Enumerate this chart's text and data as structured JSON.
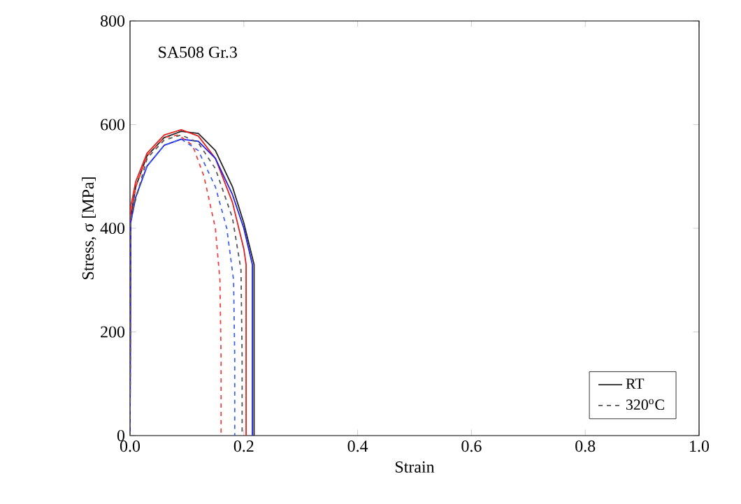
{
  "chart_data": {
    "type": "line",
    "xlabel": "Strain",
    "ylabel": "Stress, σ [MPa]",
    "annotations": [
      "SA508 Gr.3"
    ],
    "xlim": [
      0.0,
      1.0
    ],
    "xticks": [
      {
        "value": 0,
        "label": "0.0"
      },
      0.2,
      0.4,
      0.6,
      0.8,
      {
        "value": 1,
        "label": "1.0"
      }
    ],
    "ylim": [
      0,
      800
    ],
    "yticks": [
      0,
      200,
      400,
      600,
      800
    ],
    "legend": "bottom right",
    "grid": false,
    "marker": "none",
    "series": [
      {
        "name": "RT",
        "color": "#222222",
        "line_style": "solid",
        "x": [
          0,
          0.001,
          0.01,
          0.03,
          0.06,
          0.09,
          0.12,
          0.15,
          0.18,
          0.2,
          0.218,
          0.218
        ],
        "values": [
          0,
          420,
          480,
          540,
          575,
          587,
          583,
          550,
          480,
          410,
          330,
          0
        ]
      },
      {
        "color": "#e02020",
        "line_style": "solid",
        "x": [
          0,
          0.001,
          0.01,
          0.03,
          0.06,
          0.09,
          0.12,
          0.15,
          0.18,
          0.2,
          0.204,
          0.204
        ],
        "values": [
          0,
          440,
          490,
          545,
          580,
          590,
          578,
          535,
          450,
          360,
          330,
          0
        ]
      },
      {
        "color": "#2020e0",
        "line_style": "solid",
        "x": [
          0,
          0.001,
          0.01,
          0.03,
          0.06,
          0.09,
          0.12,
          0.15,
          0.18,
          0.2,
          0.215,
          0.215
        ],
        "values": [
          0,
          410,
          460,
          520,
          560,
          572,
          568,
          535,
          465,
          400,
          330,
          0
        ]
      },
      {
        "color": "#f04040",
        "line_style": "dashed",
        "x": [
          0,
          0.001,
          0.01,
          0.03,
          0.06,
          0.085,
          0.11,
          0.13,
          0.15,
          0.158,
          0.16,
          0.16
        ],
        "values": [
          0,
          430,
          480,
          540,
          575,
          580,
          560,
          500,
          400,
          300,
          150,
          0
        ]
      },
      {
        "color": "#4060f0",
        "line_style": "dashed",
        "x": [
          0,
          0.001,
          0.01,
          0.03,
          0.06,
          0.09,
          0.12,
          0.15,
          0.17,
          0.182,
          0.184,
          0.184
        ],
        "values": [
          0,
          410,
          460,
          520,
          560,
          572,
          550,
          480,
          400,
          300,
          150,
          0
        ]
      },
      {
        "name": "320$^{o}$C",
        "color": "#555555",
        "line_style": "dashed",
        "x": [
          0,
          0.001,
          0.03,
          0.06,
          0.09,
          0.12,
          0.15,
          0.18,
          0.195,
          0.197,
          0.197
        ],
        "values": [
          0,
          420,
          535,
          570,
          580,
          565,
          515,
          420,
          320,
          150,
          0
        ]
      }
    ]
  }
}
